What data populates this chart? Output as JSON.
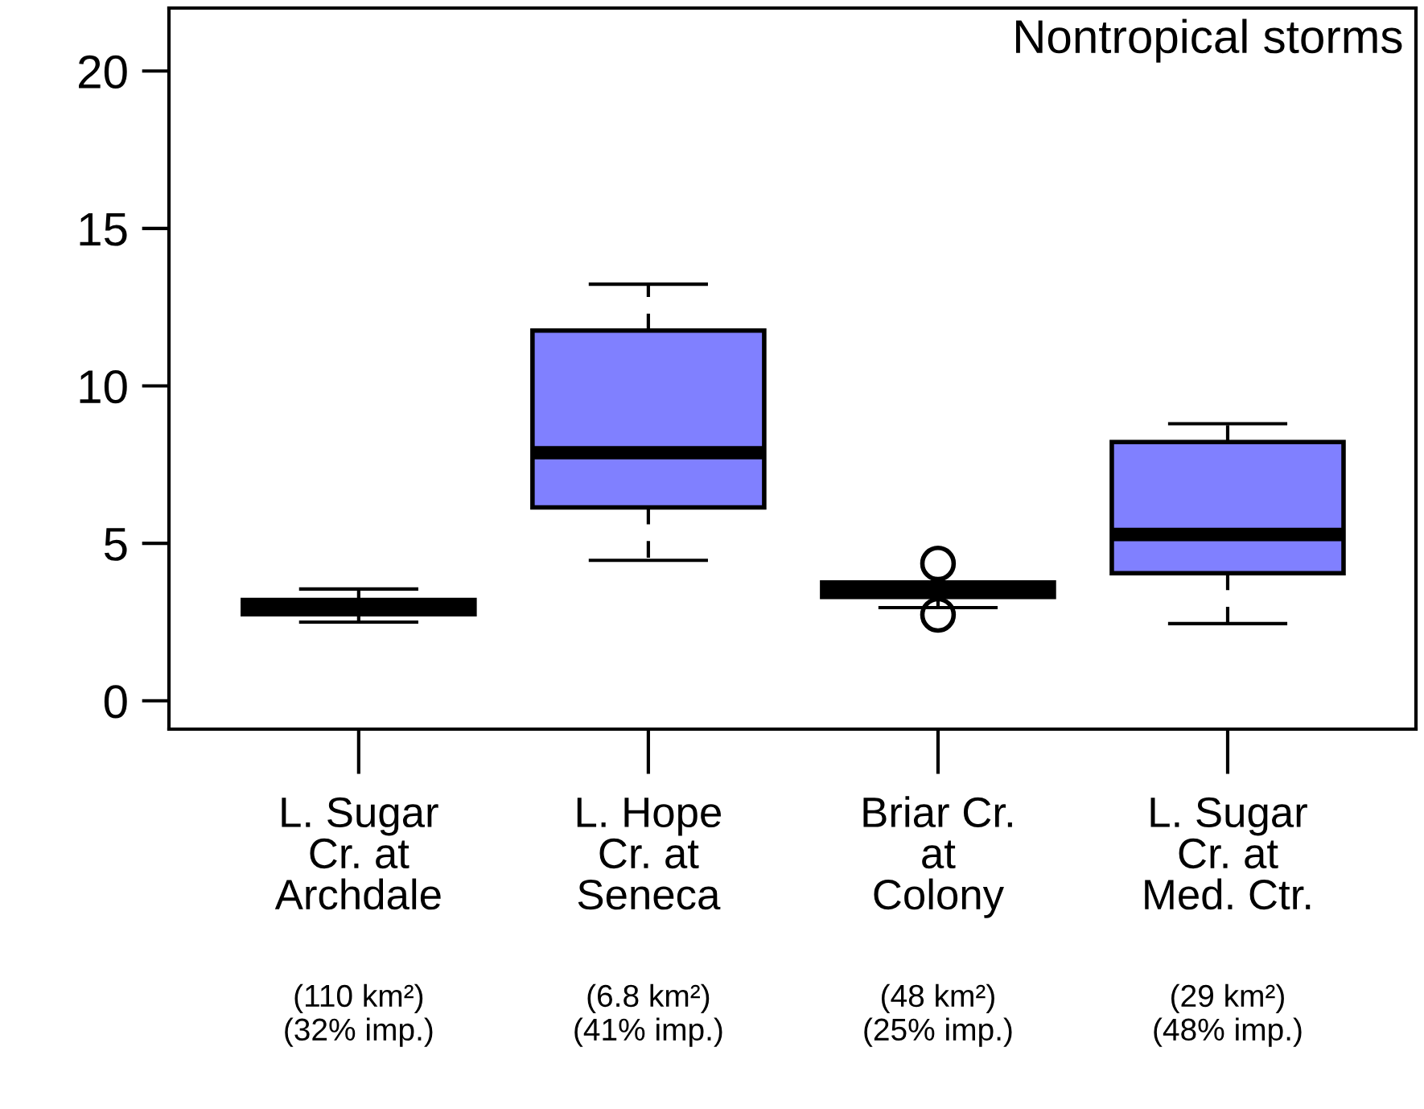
{
  "chart_data": {
    "type": "box",
    "title": "Nontropical storms",
    "categories": [
      "L. Sugar\nCr. at\nArchdale\n(110 km²)\n(32% imp.)",
      "L. Hope\nCr. at\nSeneca\n(6.8 km²)\n(41% imp.)",
      "Briar Cr.\nat\nColony\n(48 km²)\n(25% imp.)",
      "L. Sugar\nCr. at\nMed. Ctr.\n(29 km²)\n(48% imp.)"
    ],
    "series": [
      {
        "color": "#8080ff",
        "boxes": [
          {
            "low": 2.5,
            "q1": 2.75,
            "median": 2.96,
            "q3": 3.2,
            "high": 3.55
          },
          {
            "low": 4.46,
            "q1": 6.14,
            "median": 7.88,
            "q3": 11.76,
            "high": 13.23
          },
          {
            "low": 2.96,
            "q1": 3.3,
            "median": 3.54,
            "q3": 3.76,
            "high": 3.76,
            "outliers": [
              4.36,
              2.73
            ]
          },
          {
            "low": 2.45,
            "q1": 4.05,
            "median": 5.28,
            "q3": 8.22,
            "high": 8.8
          }
        ]
      }
    ],
    "ylim": [
      -0.9,
      22
    ],
    "yticks": [
      0,
      5,
      10,
      15,
      20
    ],
    "grid": false,
    "legend": false
  }
}
